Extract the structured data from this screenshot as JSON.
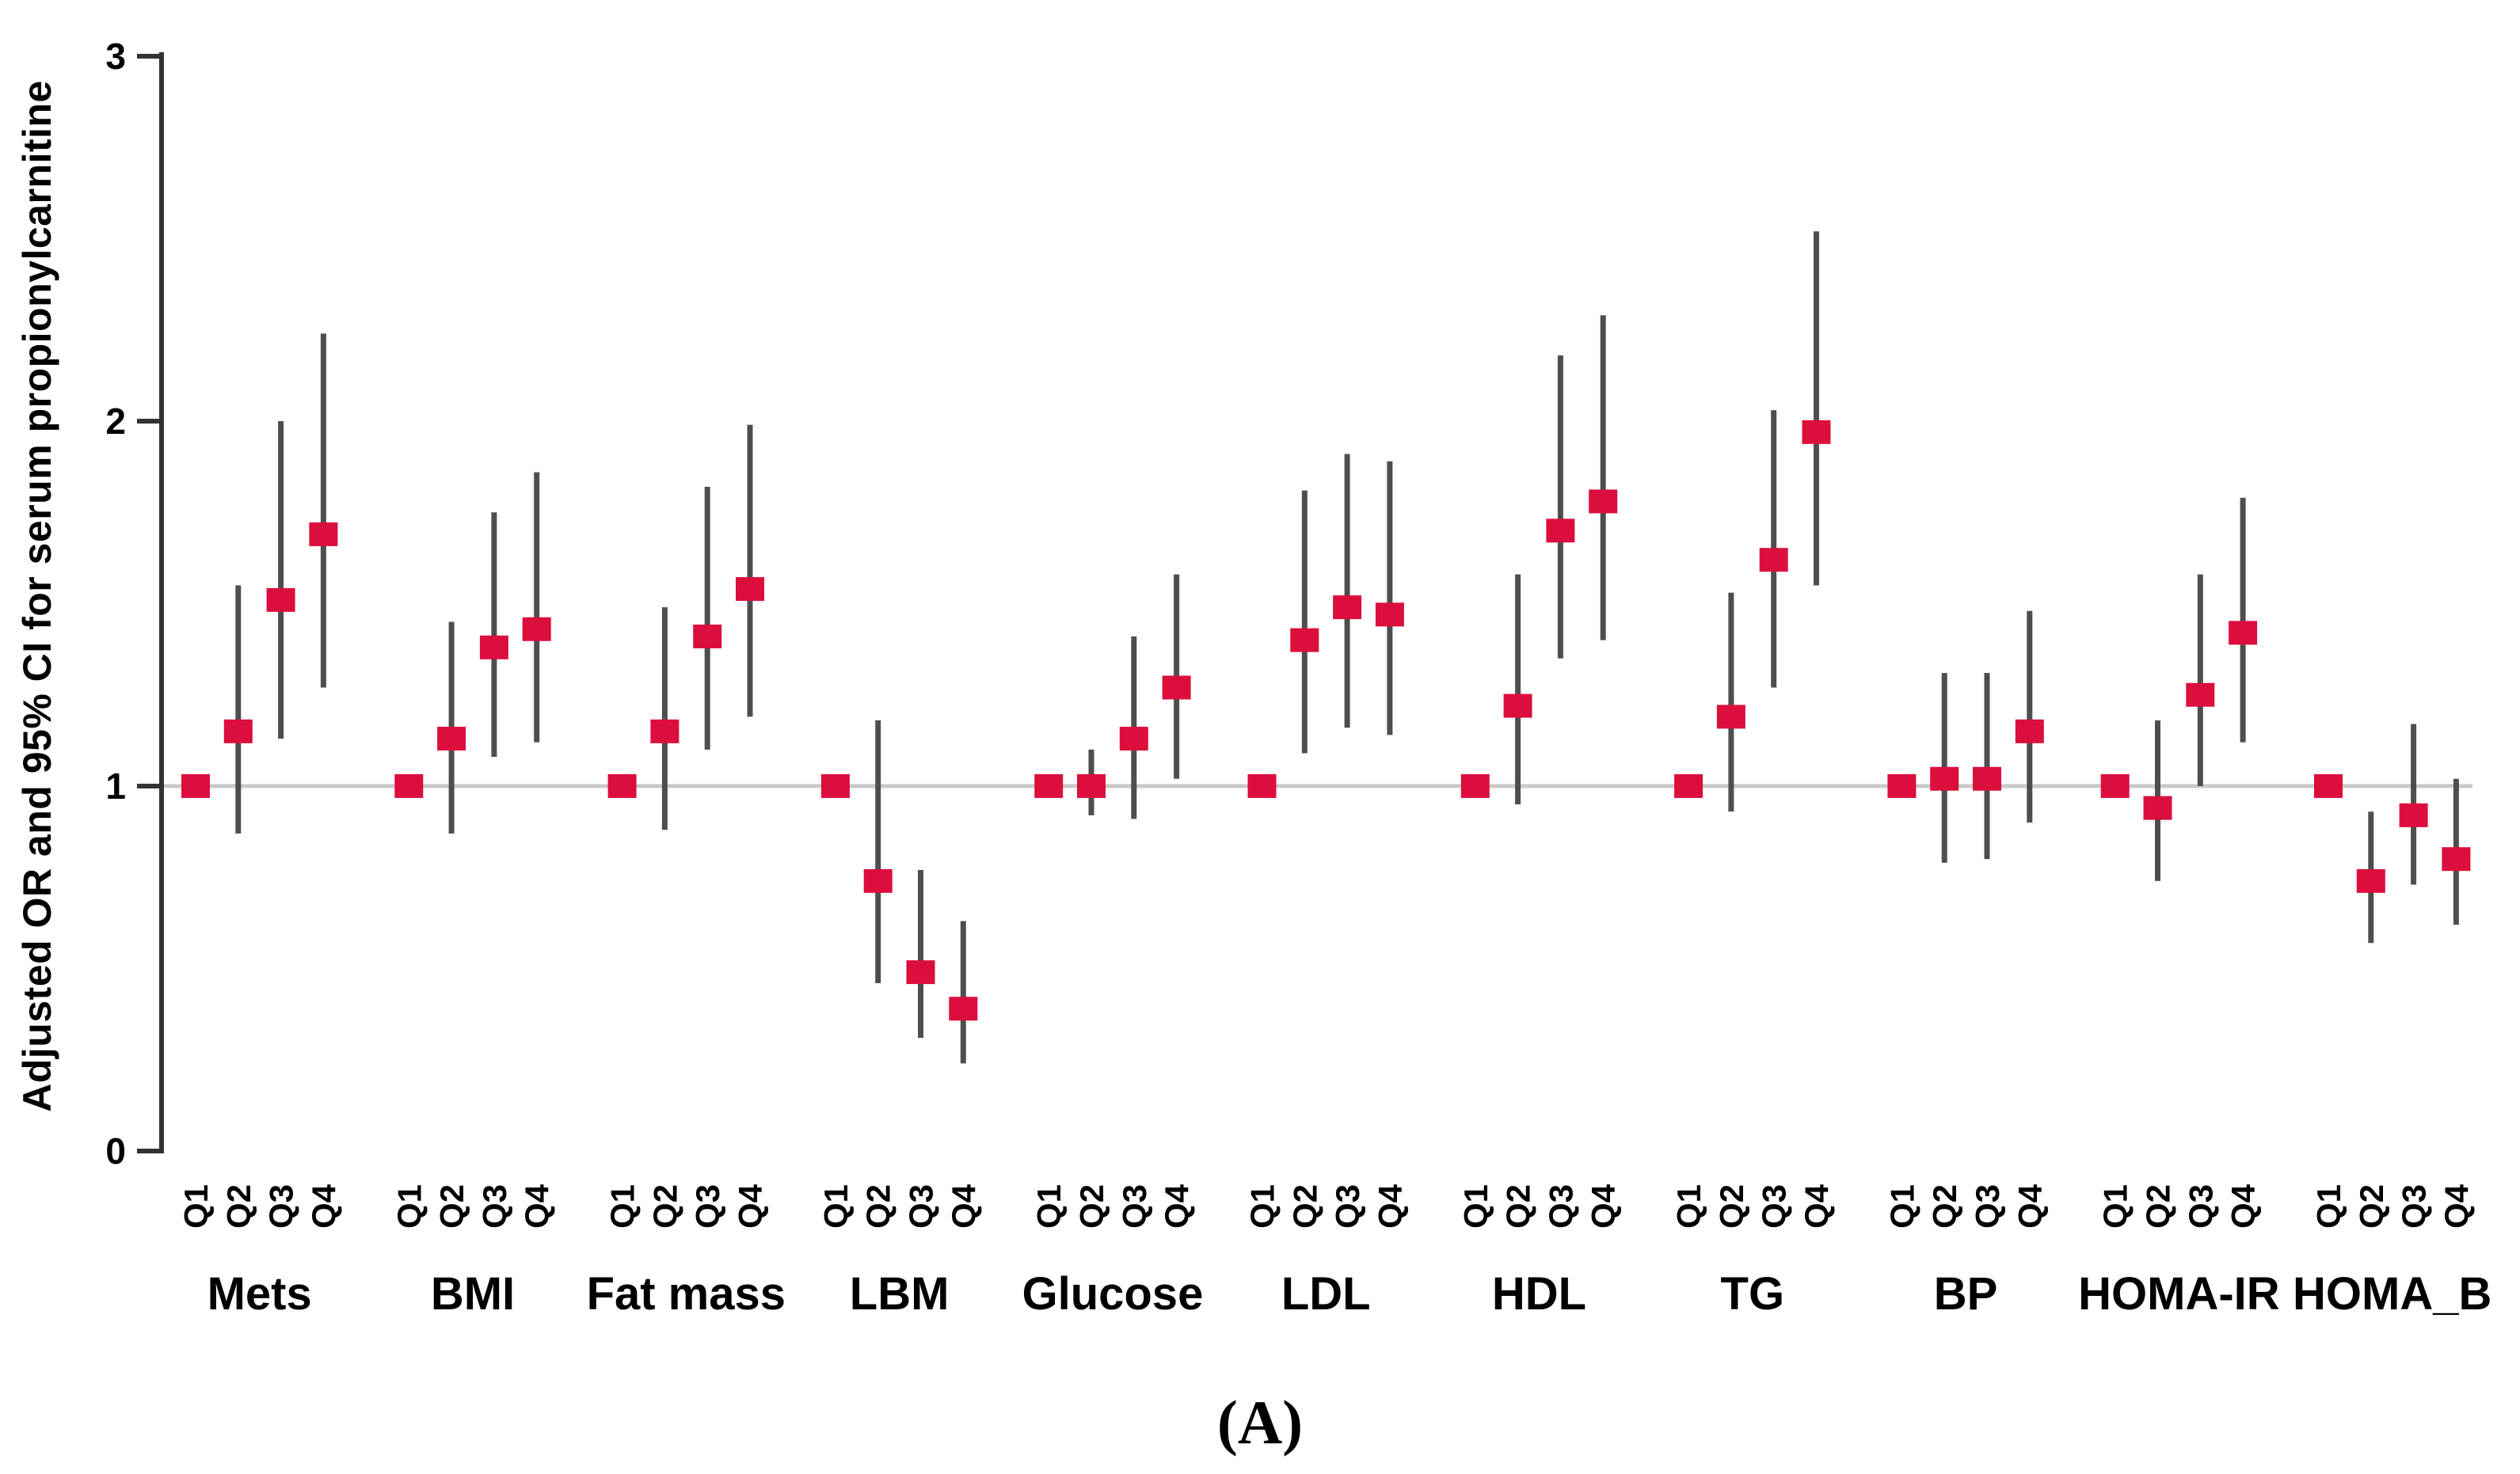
{
  "figure": {
    "caption": "(A)"
  },
  "chart_data": {
    "type": "errorbar",
    "title": "",
    "ylabel": "Adjusted OR and 95% CI for serum propionylcarnitine",
    "xlabel": "",
    "caption": "(A)",
    "ylim": [
      0,
      3
    ],
    "yticks": [
      "0",
      "1",
      "2",
      "3"
    ],
    "reference_line": 1,
    "grid": "single horizontal reference line at OR = 1",
    "legend": "none",
    "quartile_labels": [
      "Q1",
      "Q2",
      "Q3",
      "Q4"
    ],
    "colors": {
      "marker": "#DC0E3E",
      "ci": "#4E4E4E",
      "grid": "#C9C9C9",
      "axis": "#333333",
      "text": "#000000",
      "background": "#FFFFFF"
    },
    "groups": [
      {
        "name": "Mets",
        "points": [
          {
            "q": "Q1",
            "or": 1.0
          },
          {
            "q": "Q2",
            "or": 1.15,
            "lo": 0.87,
            "hi": 1.55
          },
          {
            "q": "Q3",
            "or": 1.51,
            "lo": 1.13,
            "hi": 2.0
          },
          {
            "q": "Q4",
            "or": 1.69,
            "lo": 1.27,
            "hi": 2.24
          }
        ]
      },
      {
        "name": "BMI",
        "points": [
          {
            "q": "Q1",
            "or": 1.0
          },
          {
            "q": "Q2",
            "or": 1.13,
            "lo": 0.87,
            "hi": 1.45
          },
          {
            "q": "Q3",
            "or": 1.38,
            "lo": 1.08,
            "hi": 1.75
          },
          {
            "q": "Q4",
            "or": 1.43,
            "lo": 1.12,
            "hi": 1.86
          }
        ]
      },
      {
        "name": "Fat mass",
        "points": [
          {
            "q": "Q1",
            "or": 1.0
          },
          {
            "q": "Q2",
            "or": 1.15,
            "lo": 0.88,
            "hi": 1.49
          },
          {
            "q": "Q3",
            "or": 1.41,
            "lo": 1.1,
            "hi": 1.82
          },
          {
            "q": "Q4",
            "or": 1.54,
            "lo": 1.19,
            "hi": 1.99
          }
        ]
      },
      {
        "name": "LBM",
        "points": [
          {
            "q": "Q1",
            "or": 1.0
          },
          {
            "q": "Q2",
            "or": 0.74,
            "lo": 0.46,
            "hi": 1.18
          },
          {
            "q": "Q3",
            "or": 0.49,
            "lo": 0.31,
            "hi": 0.77
          },
          {
            "q": "Q4",
            "or": 0.39,
            "lo": 0.24,
            "hi": 0.63
          }
        ]
      },
      {
        "name": "Glucose",
        "points": [
          {
            "q": "Q1",
            "or": 1.0
          },
          {
            "q": "Q2",
            "or": 1.0,
            "lo": 0.92,
            "hi": 1.1
          },
          {
            "q": "Q3",
            "or": 1.13,
            "lo": 0.91,
            "hi": 1.41
          },
          {
            "q": "Q4",
            "or": 1.27,
            "lo": 1.02,
            "hi": 1.58
          }
        ]
      },
      {
        "name": "LDL",
        "points": [
          {
            "q": "Q1",
            "or": 1.0
          },
          {
            "q": "Q2",
            "or": 1.4,
            "lo": 1.09,
            "hi": 1.81
          },
          {
            "q": "Q3",
            "or": 1.49,
            "lo": 1.16,
            "hi": 1.91
          },
          {
            "q": "Q4",
            "or": 1.47,
            "lo": 1.14,
            "hi": 1.89
          }
        ]
      },
      {
        "name": "HDL",
        "points": [
          {
            "q": "Q1",
            "or": 1.0
          },
          {
            "q": "Q2",
            "or": 1.22,
            "lo": 0.95,
            "hi": 1.58
          },
          {
            "q": "Q3",
            "or": 1.7,
            "lo": 1.35,
            "hi": 2.18
          },
          {
            "q": "Q4",
            "or": 1.78,
            "lo": 1.4,
            "hi": 2.29
          }
        ]
      },
      {
        "name": "TG",
        "points": [
          {
            "q": "Q1",
            "or": 1.0
          },
          {
            "q": "Q2",
            "or": 1.19,
            "lo": 0.93,
            "hi": 1.53
          },
          {
            "q": "Q3",
            "or": 1.62,
            "lo": 1.27,
            "hi": 2.03
          },
          {
            "q": "Q4",
            "or": 1.97,
            "lo": 1.55,
            "hi": 2.52
          }
        ]
      },
      {
        "name": "BP",
        "points": [
          {
            "q": "Q1",
            "or": 1.0
          },
          {
            "q": "Q2",
            "or": 1.02,
            "lo": 0.79,
            "hi": 1.31
          },
          {
            "q": "Q3",
            "or": 1.02,
            "lo": 0.8,
            "hi": 1.31
          },
          {
            "q": "Q4",
            "or": 1.15,
            "lo": 0.9,
            "hi": 1.48
          }
        ]
      },
      {
        "name": "HOMA-IR",
        "points": [
          {
            "q": "Q1",
            "or": 1.0
          },
          {
            "q": "Q2",
            "or": 0.94,
            "lo": 0.74,
            "hi": 1.18
          },
          {
            "q": "Q3",
            "or": 1.25,
            "lo": 1.0,
            "hi": 1.58
          },
          {
            "q": "Q4",
            "or": 1.42,
            "lo": 1.12,
            "hi": 1.79
          }
        ]
      },
      {
        "name": "HOMA_B",
        "points": [
          {
            "q": "Q1",
            "or": 1.0
          },
          {
            "q": "Q2",
            "or": 0.74,
            "lo": 0.57,
            "hi": 0.93
          },
          {
            "q": "Q3",
            "or": 0.92,
            "lo": 0.73,
            "hi": 1.17
          },
          {
            "q": "Q4",
            "or": 0.8,
            "lo": 0.62,
            "hi": 1.02
          }
        ]
      }
    ]
  }
}
